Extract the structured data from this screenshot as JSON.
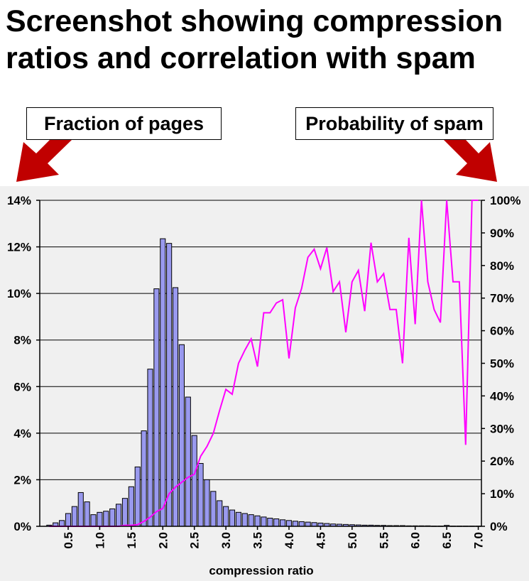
{
  "slide": {
    "title_line1": "Screenshot showing compression",
    "title_line2": "ratios and correlation with spam",
    "callout_left": "Fraction of pages",
    "callout_right": "Probability of spam",
    "arrow_color": "#c00000"
  },
  "chart_data": {
    "type": "bar+line",
    "xlabel": "compression ratio",
    "x_ticks": [
      "0.5",
      "1.0",
      "1.5",
      "2.0",
      "2.5",
      "3.0",
      "3.5",
      "4.0",
      "4.5",
      "5.0",
      "5.5",
      "6.0",
      "6.5",
      "7.0"
    ],
    "left_axis": {
      "ylim": [
        0,
        14
      ],
      "ticks": [
        "0%",
        "2%",
        "4%",
        "6%",
        "8%",
        "10%",
        "12%",
        "14%"
      ]
    },
    "right_axis": {
      "ylim": [
        0,
        100
      ],
      "ticks": [
        "0%",
        "10%",
        "20%",
        "30%",
        "40%",
        "50%",
        "60%",
        "70%",
        "80%",
        "90%",
        "100%"
      ]
    },
    "grid": true,
    "background": "#f0f0f0",
    "bar_color": "#9999ee",
    "line_color": "#ff00ff",
    "series": [
      {
        "kind": "bar",
        "axis": "left",
        "x": [
          0.2,
          0.3,
          0.4,
          0.5,
          0.6,
          0.7,
          0.8,
          0.9,
          1.0,
          1.1,
          1.2,
          1.3,
          1.4,
          1.5,
          1.6,
          1.7,
          1.8,
          1.9,
          2.0,
          2.1,
          2.2,
          2.3,
          2.4,
          2.5,
          2.6,
          2.7,
          2.8,
          2.9,
          3.0,
          3.1,
          3.2,
          3.3,
          3.4,
          3.5,
          3.6,
          3.7,
          3.8,
          3.9,
          4.0,
          4.1,
          4.2,
          4.3,
          4.4,
          4.5,
          4.6,
          4.7,
          4.8,
          4.9,
          5.0,
          5.1,
          5.2,
          5.3,
          5.4,
          5.5,
          5.6,
          5.7,
          5.8,
          5.9,
          6.0,
          6.1,
          6.2,
          6.3,
          6.4,
          6.5,
          6.6,
          6.7,
          6.8,
          6.9,
          7.0
        ],
        "values": [
          0.05,
          0.15,
          0.25,
          0.55,
          0.85,
          1.45,
          1.05,
          0.5,
          0.6,
          0.65,
          0.75,
          0.95,
          1.2,
          1.7,
          2.55,
          4.1,
          6.75,
          10.2,
          12.35,
          12.15,
          10.25,
          7.8,
          5.55,
          3.9,
          2.7,
          2.0,
          1.5,
          1.1,
          0.85,
          0.7,
          0.6,
          0.55,
          0.5,
          0.45,
          0.4,
          0.35,
          0.32,
          0.28,
          0.25,
          0.22,
          0.2,
          0.18,
          0.16,
          0.14,
          0.12,
          0.1,
          0.09,
          0.08,
          0.07,
          0.06,
          0.05,
          0.05,
          0.04,
          0.04,
          0.03,
          0.03,
          0.03,
          0.02,
          0.02,
          0.02,
          0.02,
          0.01,
          0.01,
          0.04,
          0.01,
          0.01,
          0.01,
          0.01,
          0.01
        ]
      },
      {
        "kind": "line",
        "axis": "right",
        "x": [
          0.2,
          0.3,
          0.4,
          0.5,
          0.6,
          0.7,
          0.8,
          0.9,
          1.0,
          1.1,
          1.2,
          1.3,
          1.4,
          1.5,
          1.6,
          1.7,
          1.8,
          1.9,
          2.0,
          2.1,
          2.2,
          2.3,
          2.4,
          2.5,
          2.6,
          2.7,
          2.8,
          2.9,
          3.0,
          3.1,
          3.2,
          3.3,
          3.4,
          3.5,
          3.6,
          3.7,
          3.8,
          3.9,
          4.0,
          4.1,
          4.2,
          4.3,
          4.4,
          4.5,
          4.6,
          4.7,
          4.8,
          4.9,
          5.0,
          5.1,
          5.2,
          5.3,
          5.4,
          5.5,
          5.6,
          5.7,
          5.8,
          5.9,
          6.0,
          6.1,
          6.2,
          6.3,
          6.4,
          6.5,
          6.6,
          6.7,
          6.8,
          6.9,
          7.0
        ],
        "values": [
          0,
          0,
          0,
          0,
          0,
          0,
          0,
          0,
          0,
          0,
          0,
          0,
          0.3,
          0.3,
          0.5,
          1.5,
          2.8,
          4.5,
          5.5,
          10,
          12,
          13.5,
          15,
          16,
          21.5,
          24.5,
          28.5,
          35.5,
          42,
          40.5,
          50,
          54,
          57.5,
          49,
          65.5,
          65.5,
          68.5,
          69.5,
          51.5,
          67,
          73,
          82.5,
          85,
          79,
          85.5,
          72,
          75,
          59.5,
          75,
          78.5,
          66,
          87,
          75,
          77.5,
          66.5,
          66.5,
          50,
          88.5,
          62,
          100,
          75,
          66.5,
          62.5,
          100,
          75,
          75,
          25,
          100,
          100
        ]
      }
    ]
  }
}
